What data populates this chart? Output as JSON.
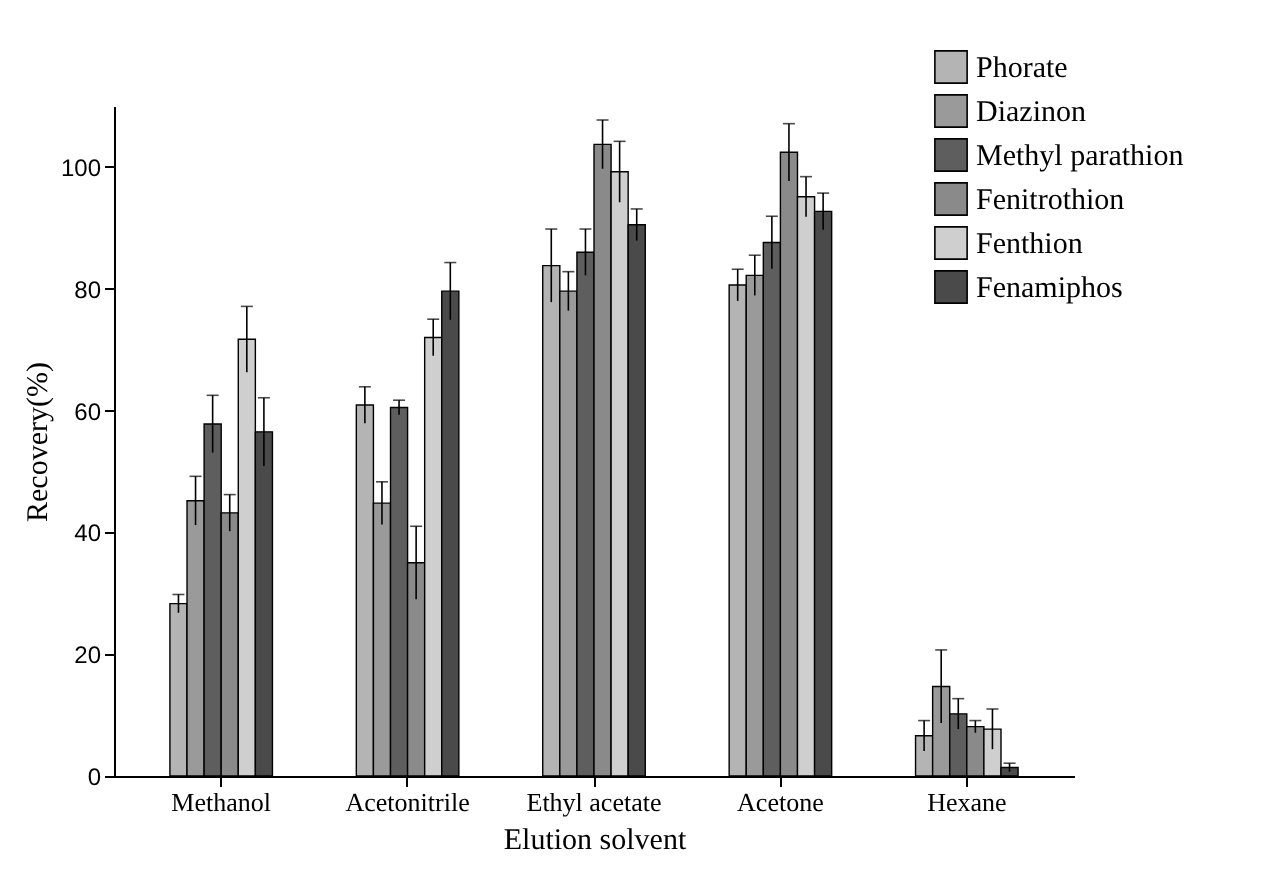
{
  "chart_data": {
    "type": "bar",
    "xlabel": "Elution solvent",
    "ylabel": "Recovery(%)",
    "categories": [
      "Methanol",
      "Acetonitrile",
      "Ethyl acetate",
      "Acetone",
      "Hexane"
    ],
    "series": [
      {
        "name": "Phorate",
        "color": "#b4b4b4",
        "values": [
          28.3,
          60.9,
          83.8,
          80.6,
          6.6
        ],
        "errors": [
          1.5,
          3,
          6,
          2.6,
          2.5
        ]
      },
      {
        "name": "Diazinon",
        "color": "#9a9a9a",
        "values": [
          45.2,
          44.8,
          79.6,
          82.2,
          14.7
        ],
        "errors": [
          4,
          3.5,
          3.2,
          3.3,
          6
        ]
      },
      {
        "name": "Methyl parathion",
        "color": "#5e5e5e",
        "values": [
          57.8,
          60.5,
          86,
          87.6,
          10.2
        ],
        "errors": [
          4.7,
          1.2,
          3.8,
          4.3,
          2.5
        ]
      },
      {
        "name": "Fenitrothion",
        "color": "#8a8a8a",
        "values": [
          43.2,
          35,
          103.7,
          102.4,
          8.1
        ],
        "errors": [
          3,
          6,
          4,
          4.7,
          1
        ]
      },
      {
        "name": "Fenthion",
        "color": "#cfcfcf",
        "values": [
          71.7,
          72,
          99.2,
          95.1,
          7.7
        ],
        "errors": [
          5.4,
          3,
          5,
          3.3,
          3.3
        ]
      },
      {
        "name": "Fenamiphos",
        "color": "#4a4a4a",
        "values": [
          56.5,
          79.6,
          90.5,
          92.7,
          1.4
        ],
        "errors": [
          5.6,
          4.7,
          2.6,
          3,
          0.7
        ]
      }
    ],
    "ylim": [
      0,
      110
    ],
    "yticks": [
      0,
      20,
      40,
      60,
      80,
      100
    ],
    "grid": false,
    "legend": "top right"
  }
}
